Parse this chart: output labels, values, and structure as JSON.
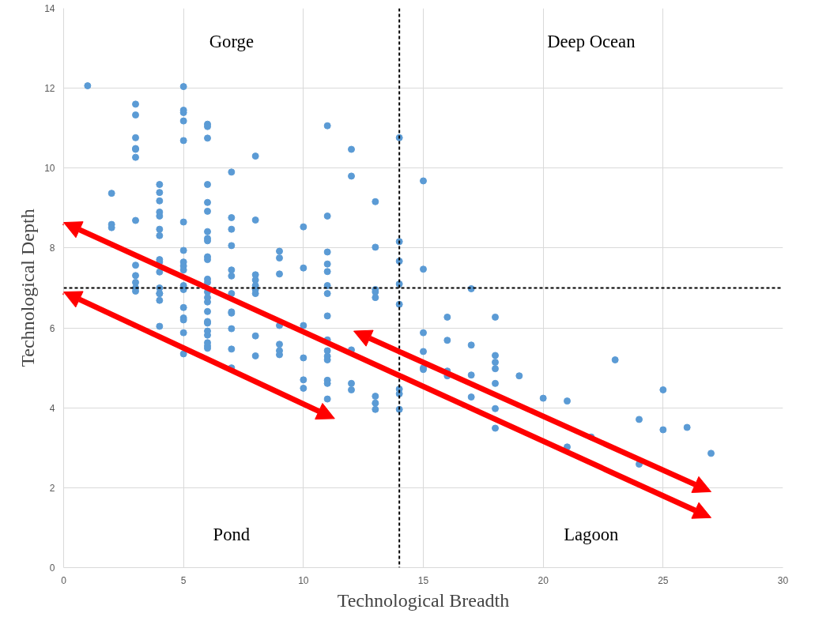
{
  "chart_data": {
    "type": "scatter",
    "xlabel": "Technological Breadth",
    "ylabel": "Technological Depth",
    "xlim": [
      0,
      30
    ],
    "ylim": [
      0,
      14
    ],
    "xticks": [
      0,
      5,
      10,
      15,
      20,
      25,
      30
    ],
    "yticks": [
      0,
      2,
      4,
      6,
      8,
      10,
      12,
      14
    ],
    "grid": true,
    "marker": "circle",
    "ref_lines": [
      {
        "axis": "x",
        "value": 14,
        "color": "#000000",
        "line_style": "dashed"
      },
      {
        "axis": "y",
        "value": 7,
        "color": "#000000",
        "line_style": "dashed"
      }
    ],
    "annotations": [
      "Gorge",
      "Deep Ocean",
      "Pond",
      "Lagoon"
    ],
    "series": [
      {
        "color": "#5b9bd5",
        "x": [
          1,
          2,
          2,
          2,
          3,
          3,
          3,
          3,
          3,
          3,
          3,
          3,
          3,
          3,
          3,
          3,
          4,
          4,
          4,
          4,
          4,
          4,
          4,
          4,
          4,
          4,
          4,
          4,
          4,
          4,
          4,
          5,
          5,
          5,
          5,
          5,
          5,
          5,
          5,
          5,
          5,
          5,
          5,
          5,
          5,
          5,
          5,
          5,
          6,
          6,
          6,
          6,
          6,
          6,
          6,
          6,
          6,
          6,
          6,
          6,
          6,
          6,
          6,
          6,
          6,
          6,
          6,
          6,
          6,
          6,
          6,
          6,
          7,
          7,
          7,
          7,
          7,
          7,
          7,
          7,
          7,
          7,
          7,
          7,
          8,
          8,
          8,
          8,
          8,
          8,
          8,
          8,
          8,
          9,
          9,
          9,
          9,
          9,
          9,
          9,
          10,
          10,
          10,
          10,
          10,
          10,
          11,
          11,
          11,
          11,
          11,
          11,
          11,
          11,
          11,
          11,
          11,
          11,
          11,
          11,
          11,
          12,
          12,
          12,
          12,
          12,
          13,
          13,
          13,
          13,
          13,
          13,
          13,
          13,
          14,
          14,
          14,
          14,
          14,
          14,
          14,
          14,
          15,
          15,
          15,
          15,
          15,
          15,
          16,
          16,
          16,
          16,
          17,
          17,
          17,
          17,
          18,
          18,
          18,
          18,
          18,
          18,
          18,
          19,
          20,
          21,
          21,
          22,
          23,
          24,
          24,
          25,
          25,
          26,
          27
        ],
        "values": [
          12.06,
          9.37,
          8.59,
          8.51,
          11.6,
          11.33,
          10.76,
          10.49,
          10.47,
          10.27,
          8.69,
          7.57,
          7.31,
          7.14,
          7.0,
          6.92,
          9.59,
          9.39,
          9.18,
          8.9,
          8.8,
          8.47,
          8.31,
          7.71,
          7.65,
          7.4,
          7.0,
          6.86,
          6.69,
          6.04,
          6.86,
          12.04,
          11.45,
          11.39,
          10.69,
          8.65,
          7.94,
          7.65,
          7.55,
          7.45,
          7.06,
          6.96,
          6.51,
          6.25,
          6.2,
          5.88,
          5.35,
          11.18,
          11.1,
          11.04,
          10.75,
          9.59,
          9.14,
          8.41,
          8.24,
          8.18,
          7.78,
          7.71,
          7.22,
          7.14,
          6.9,
          6.76,
          6.65,
          6.41,
          6.16,
          6.12,
          5.92,
          5.82,
          5.63,
          5.55,
          5.49,
          8.92,
          8.76,
          8.47,
          8.06,
          7.45,
          7.3,
          6.86,
          6.37,
          5.98,
          5.47,
          5.0,
          6.4,
          9.9,
          8.7,
          7.33,
          7.2,
          7.06,
          6.96,
          6.86,
          5.8,
          5.3,
          10.3,
          7.92,
          7.75,
          7.35,
          6.06,
          5.59,
          5.43,
          5.33,
          8.53,
          7.5,
          6.06,
          5.25,
          4.7,
          4.49,
          11.06,
          8.8,
          7.9,
          7.6,
          7.41,
          7.06,
          6.3,
          5.7,
          5.43,
          5.29,
          5.2,
          4.69,
          4.61,
          4.22,
          6.86,
          10.47,
          9.8,
          5.45,
          4.61,
          4.45,
          9.16,
          8.02,
          6.96,
          6.9,
          6.76,
          4.29,
          4.12,
          3.96,
          10.76,
          8.16,
          7.67,
          7.1,
          6.59,
          4.47,
          4.35,
          3.96,
          9.68,
          7.47,
          5.88,
          5.41,
          5.0,
          4.96,
          6.27,
          5.69,
          4.92,
          4.8,
          6.98,
          5.57,
          4.82,
          4.27,
          6.27,
          5.31,
          5.14,
          4.98,
          4.61,
          3.98,
          3.49,
          4.8,
          4.24,
          4.17,
          3.02,
          3.27,
          5.2,
          3.71,
          2.59,
          4.45,
          3.45,
          3.51,
          2.86
        ]
      }
    ]
  }
}
